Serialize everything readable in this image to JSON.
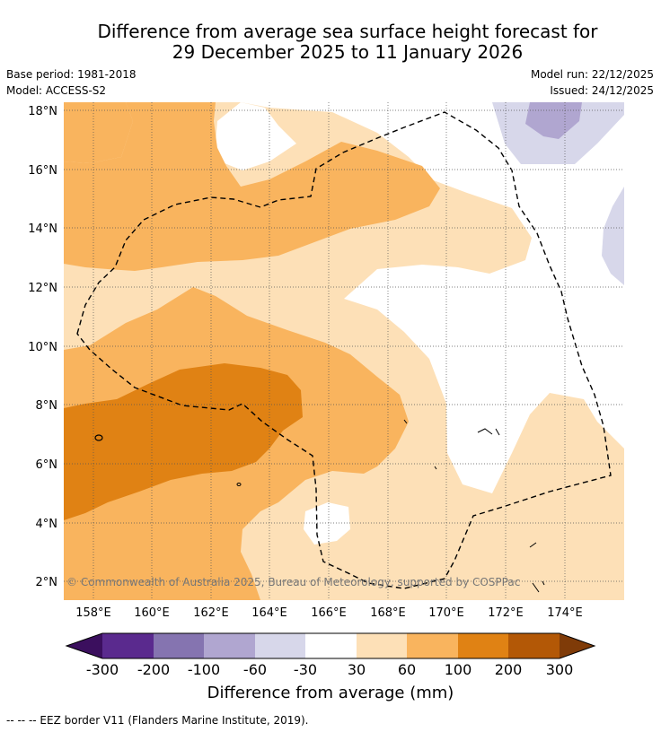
{
  "header": {
    "title_line1": "Difference from average sea surface height forecast for",
    "title_line2": "29 December 2025 to 11 January 2026",
    "base_period": "Base period: 1981-2018",
    "model": "Model: ACCESS-S2",
    "model_run": "Model run: 22/12/2025",
    "issued": "Issued: 24/12/2025"
  },
  "map": {
    "lon_labels": [
      "158°E",
      "160°E",
      "162°E",
      "164°E",
      "166°E",
      "168°E",
      "170°E",
      "172°E",
      "174°E"
    ],
    "lat_labels": [
      "18°N",
      "16°N",
      "14°N",
      "12°N",
      "10°N",
      "8°N",
      "6°N",
      "4°N",
      "2°N"
    ],
    "copyright": "© Commonwealth of Australia 2025, Bureau of Meteorology, supported by COSPPac"
  },
  "colorbar": {
    "title": "Difference from average (mm)",
    "tick_labels": [
      "-300",
      "-200",
      "-100",
      "-60",
      "-30",
      "30",
      "60",
      "100",
      "200",
      "300"
    ],
    "colors": [
      "#3b0f5e",
      "#5a2a8e",
      "#8574b0",
      "#b0a6d0",
      "#d7d7ea",
      "#ffffff",
      "#fde0b7",
      "#f9b45e",
      "#e08214",
      "#b35806",
      "#7f3b08"
    ]
  },
  "footer": {
    "eez_note": "-- -- -- EEZ border V11 (Flanders Marine Institute, 2019)."
  }
}
